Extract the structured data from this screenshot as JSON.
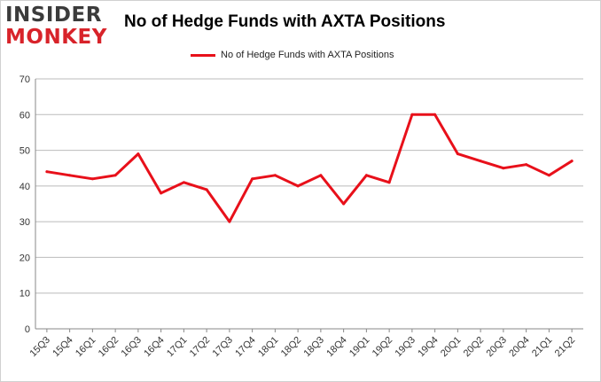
{
  "header": {
    "logo_line1": "INSIDER",
    "logo_line2": "MONKEY",
    "title": "No of Hedge Funds with AXTA Positions"
  },
  "colors": {
    "line": "#e8101a",
    "grid": "#bbbbbb",
    "logo_dark": "#3b3b3b",
    "logo_red": "#d8232a"
  },
  "chart_data": {
    "type": "line",
    "title": "No of Hedge Funds with AXTA Positions",
    "xlabel": "",
    "ylabel": "",
    "ylim": [
      0,
      70
    ],
    "yticks": [
      0,
      10,
      20,
      30,
      40,
      50,
      60,
      70
    ],
    "grid": true,
    "legend_position": "top-center",
    "categories": [
      "15Q3",
      "15Q4",
      "16Q1",
      "16Q2",
      "16Q3",
      "16Q4",
      "17Q1",
      "17Q2",
      "17Q3",
      "17Q4",
      "18Q1",
      "18Q2",
      "18Q3",
      "18Q4",
      "19Q1",
      "19Q2",
      "19Q3",
      "19Q4",
      "20Q1",
      "20Q2",
      "20Q3",
      "20Q4",
      "21Q1",
      "21Q2"
    ],
    "series": [
      {
        "name": "No of Hedge Funds with AXTA Positions",
        "values": [
          44,
          43,
          42,
          43,
          49,
          38,
          41,
          39,
          30,
          42,
          43,
          40,
          43,
          35,
          43,
          41,
          60,
          60,
          49,
          47,
          45,
          46,
          43,
          47
        ]
      }
    ]
  }
}
